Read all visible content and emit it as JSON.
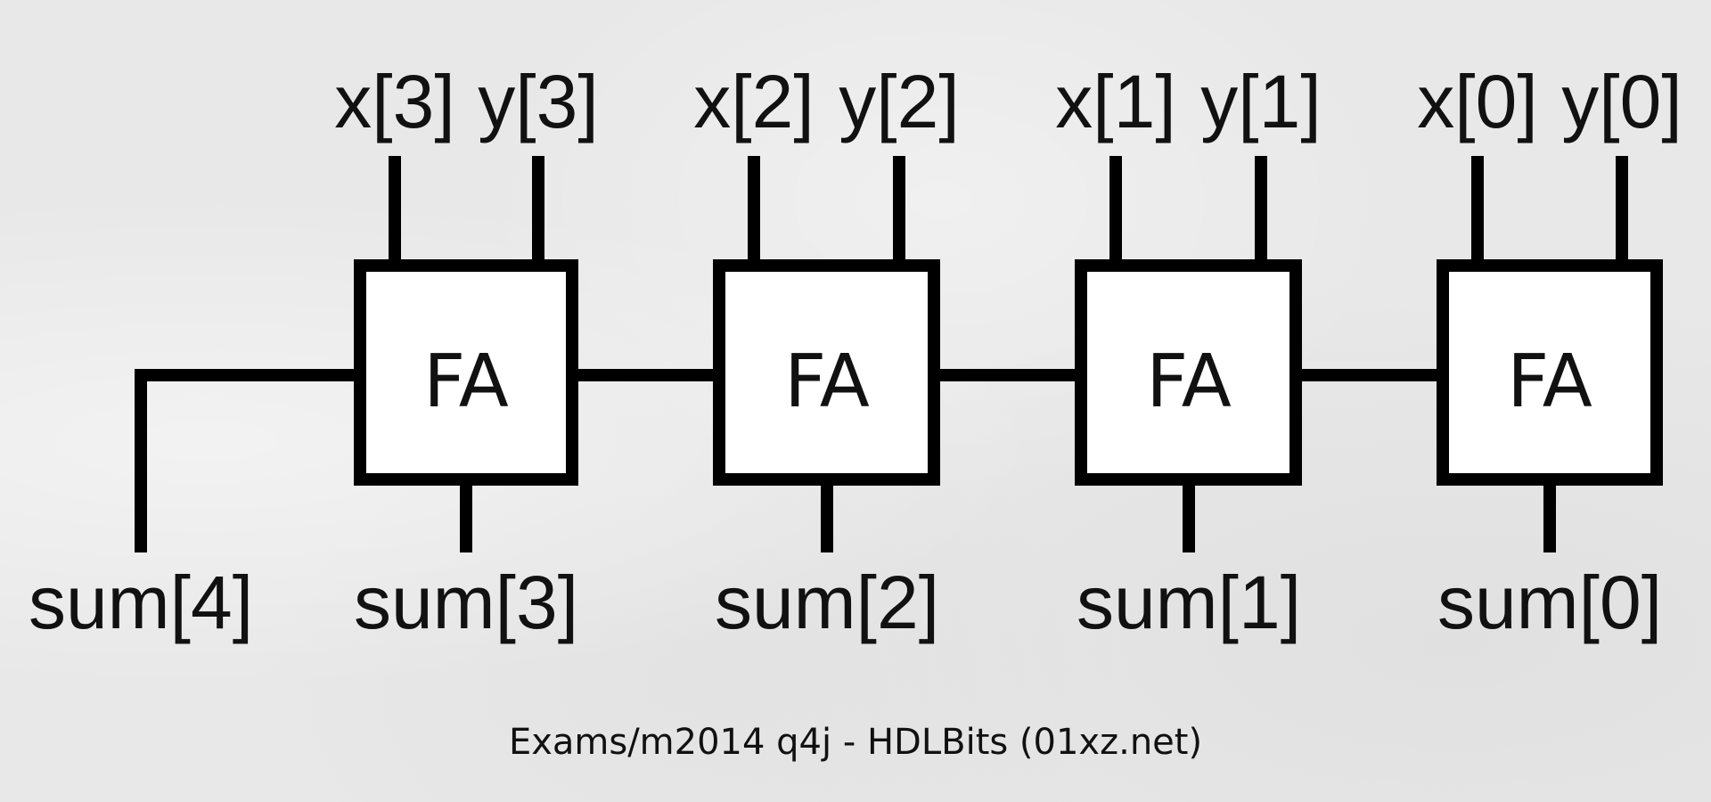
{
  "diagram": {
    "blocks": [
      {
        "label": "FA",
        "x_label": "x[3]",
        "y_label": "y[3]",
        "sum_label": "sum[3]"
      },
      {
        "label": "FA",
        "x_label": "x[2]",
        "y_label": "y[2]",
        "sum_label": "sum[2]"
      },
      {
        "label": "FA",
        "x_label": "x[1]",
        "y_label": "y[1]",
        "sum_label": "sum[1]"
      },
      {
        "label": "FA",
        "x_label": "x[0]",
        "y_label": "y[0]",
        "sum_label": "sum[0]"
      }
    ],
    "carry_out_label": "sum[4]"
  },
  "caption": "Exams/m2014 q4j - HDLBits (01xz.net)"
}
